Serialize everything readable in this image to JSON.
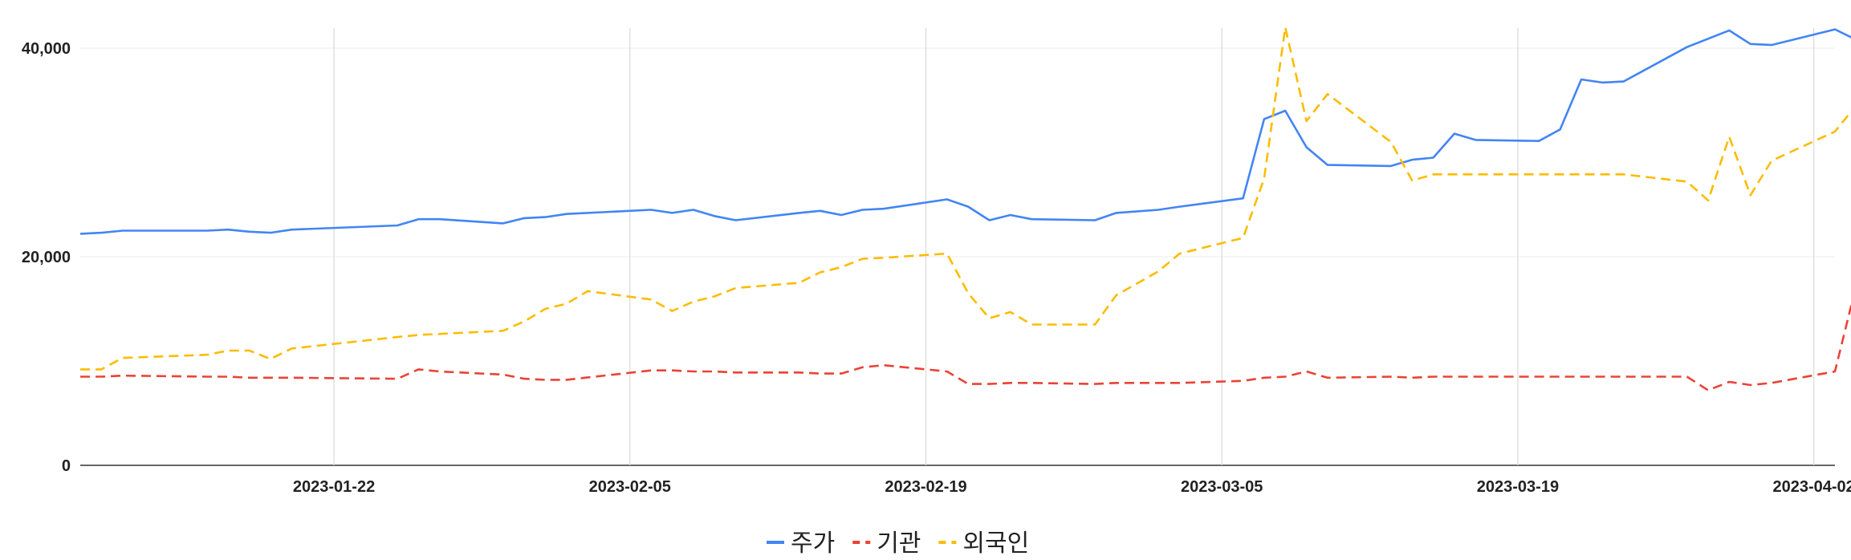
{
  "chart_data": {
    "type": "line",
    "title": "",
    "xlabel": "",
    "ylabel": "",
    "x_start": "2023-01-10",
    "x_end": "2023-04-03",
    "ylim": [
      0,
      40000
    ],
    "y_ticks": [
      0,
      20000,
      40000
    ],
    "y_tick_labels": [
      "0",
      "20,000",
      "40,000"
    ],
    "x_ticks": [
      "2023-01-22",
      "2023-02-05",
      "2023-02-19",
      "2023-03-05",
      "2023-03-19",
      "2023-04-02"
    ],
    "grid": true,
    "legend_position": "bottom",
    "series": [
      {
        "name": "주가",
        "color": "#4285f4",
        "style": "solid",
        "points": [
          [
            "2023-01-10",
            22200
          ],
          [
            "2023-01-11",
            22300
          ],
          [
            "2023-01-12",
            22500
          ],
          [
            "2023-01-16",
            22500
          ],
          [
            "2023-01-17",
            22600
          ],
          [
            "2023-01-18",
            22400
          ],
          [
            "2023-01-19",
            22300
          ],
          [
            "2023-01-20",
            22600
          ],
          [
            "2023-01-25",
            23000
          ],
          [
            "2023-01-26",
            23600
          ],
          [
            "2023-01-27",
            23600
          ],
          [
            "2023-01-30",
            23200
          ],
          [
            "2023-01-31",
            23700
          ],
          [
            "2023-02-01",
            23800
          ],
          [
            "2023-02-02",
            24100
          ],
          [
            "2023-02-06",
            24500
          ],
          [
            "2023-02-07",
            24200
          ],
          [
            "2023-02-08",
            24500
          ],
          [
            "2023-02-09",
            23900
          ],
          [
            "2023-02-10",
            23500
          ],
          [
            "2023-02-13",
            24200
          ],
          [
            "2023-02-14",
            24400
          ],
          [
            "2023-02-15",
            24000
          ],
          [
            "2023-02-16",
            24500
          ],
          [
            "2023-02-17",
            24600
          ],
          [
            "2023-02-20",
            25500
          ],
          [
            "2023-02-21",
            24800
          ],
          [
            "2023-02-22",
            23500
          ],
          [
            "2023-02-23",
            24000
          ],
          [
            "2023-02-24",
            23600
          ],
          [
            "2023-02-27",
            23500
          ],
          [
            "2023-02-28",
            24200
          ],
          [
            "2023-03-02",
            24500
          ],
          [
            "2023-03-03",
            24800
          ],
          [
            "2023-03-06",
            25600
          ],
          [
            "2023-03-07",
            33200
          ],
          [
            "2023-03-08",
            34000
          ],
          [
            "2023-03-09",
            30500
          ],
          [
            "2023-03-10",
            28800
          ],
          [
            "2023-03-13",
            28700
          ],
          [
            "2023-03-14",
            29300
          ],
          [
            "2023-03-15",
            29500
          ],
          [
            "2023-03-16",
            31800
          ],
          [
            "2023-03-17",
            31200
          ],
          [
            "2023-03-20",
            31100
          ],
          [
            "2023-03-21",
            32200
          ],
          [
            "2023-03-22",
            37000
          ],
          [
            "2023-03-23",
            36700
          ],
          [
            "2023-03-24",
            36800
          ],
          [
            "2023-03-27",
            40100
          ],
          [
            "2023-03-29",
            41700
          ],
          [
            "2023-03-30",
            40400
          ],
          [
            "2023-03-31",
            40300
          ],
          [
            "2023-04-03",
            41800
          ],
          [
            "2023-04-04",
            40800
          ]
        ]
      },
      {
        "name": "기관",
        "color": "#ea4335",
        "style": "dashed",
        "points": [
          [
            "2023-01-10",
            8500
          ],
          [
            "2023-01-11",
            8500
          ],
          [
            "2023-01-12",
            8600
          ],
          [
            "2023-01-16",
            8500
          ],
          [
            "2023-01-17",
            8500
          ],
          [
            "2023-01-18",
            8400
          ],
          [
            "2023-01-19",
            8400
          ],
          [
            "2023-01-20",
            8400
          ],
          [
            "2023-01-25",
            8300
          ],
          [
            "2023-01-26",
            9200
          ],
          [
            "2023-01-27",
            9000
          ],
          [
            "2023-01-30",
            8700
          ],
          [
            "2023-01-31",
            8300
          ],
          [
            "2023-02-01",
            8200
          ],
          [
            "2023-02-02",
            8200
          ],
          [
            "2023-02-06",
            9100
          ],
          [
            "2023-02-07",
            9100
          ],
          [
            "2023-02-08",
            9000
          ],
          [
            "2023-02-09",
            9000
          ],
          [
            "2023-02-10",
            8900
          ],
          [
            "2023-02-13",
            8900
          ],
          [
            "2023-02-14",
            8800
          ],
          [
            "2023-02-15",
            8800
          ],
          [
            "2023-02-16",
            9400
          ],
          [
            "2023-02-17",
            9600
          ],
          [
            "2023-02-20",
            9000
          ],
          [
            "2023-02-21",
            7800
          ],
          [
            "2023-02-22",
            7800
          ],
          [
            "2023-02-23",
            7900
          ],
          [
            "2023-02-24",
            7900
          ],
          [
            "2023-02-27",
            7800
          ],
          [
            "2023-02-28",
            7900
          ],
          [
            "2023-03-02",
            7900
          ],
          [
            "2023-03-03",
            7900
          ],
          [
            "2023-03-06",
            8100
          ],
          [
            "2023-03-07",
            8400
          ],
          [
            "2023-03-08",
            8500
          ],
          [
            "2023-03-09",
            9000
          ],
          [
            "2023-03-10",
            8400
          ],
          [
            "2023-03-13",
            8500
          ],
          [
            "2023-03-14",
            8400
          ],
          [
            "2023-03-15",
            8500
          ],
          [
            "2023-03-16",
            8500
          ],
          [
            "2023-03-17",
            8500
          ],
          [
            "2023-03-20",
            8500
          ],
          [
            "2023-03-21",
            8500
          ],
          [
            "2023-03-22",
            8500
          ],
          [
            "2023-03-23",
            8500
          ],
          [
            "2023-03-24",
            8500
          ],
          [
            "2023-03-27",
            8500
          ],
          [
            "2023-03-28",
            7200
          ],
          [
            "2023-03-29",
            8000
          ],
          [
            "2023-03-30",
            7700
          ],
          [
            "2023-03-31",
            7900
          ],
          [
            "2023-04-03",
            9000
          ],
          [
            "2023-04-04",
            17200
          ]
        ]
      },
      {
        "name": "외국인",
        "color": "#fbbc04",
        "style": "dashed",
        "points": [
          [
            "2023-01-10",
            9200
          ],
          [
            "2023-01-11",
            9200
          ],
          [
            "2023-01-12",
            10300
          ],
          [
            "2023-01-16",
            10600
          ],
          [
            "2023-01-17",
            11000
          ],
          [
            "2023-01-18",
            11000
          ],
          [
            "2023-01-19",
            10200
          ],
          [
            "2023-01-20",
            11200
          ],
          [
            "2023-01-25",
            12300
          ],
          [
            "2023-01-26",
            12500
          ],
          [
            "2023-01-27",
            12600
          ],
          [
            "2023-01-30",
            12900
          ],
          [
            "2023-01-31",
            13800
          ],
          [
            "2023-02-01",
            15000
          ],
          [
            "2023-02-02",
            15500
          ],
          [
            "2023-02-03",
            16700
          ],
          [
            "2023-02-06",
            15900
          ],
          [
            "2023-02-07",
            14800
          ],
          [
            "2023-02-08",
            15700
          ],
          [
            "2023-02-09",
            16200
          ],
          [
            "2023-02-10",
            17000
          ],
          [
            "2023-02-13",
            17500
          ],
          [
            "2023-02-14",
            18500
          ],
          [
            "2023-02-15",
            19000
          ],
          [
            "2023-02-16",
            19800
          ],
          [
            "2023-02-17",
            19900
          ],
          [
            "2023-02-20",
            20300
          ],
          [
            "2023-02-21",
            16500
          ],
          [
            "2023-02-22",
            14100
          ],
          [
            "2023-02-23",
            14700
          ],
          [
            "2023-02-24",
            13500
          ],
          [
            "2023-02-27",
            13500
          ],
          [
            "2023-02-28",
            16300
          ],
          [
            "2023-03-02",
            18600
          ],
          [
            "2023-03-03",
            20300
          ],
          [
            "2023-03-06",
            21800
          ],
          [
            "2023-03-07",
            27500
          ],
          [
            "2023-03-08",
            42000
          ],
          [
            "2023-03-09",
            33000
          ],
          [
            "2023-03-10",
            35600
          ],
          [
            "2023-03-13",
            31000
          ],
          [
            "2023-03-14",
            27300
          ],
          [
            "2023-03-15",
            27900
          ],
          [
            "2023-03-20",
            27900
          ],
          [
            "2023-03-24",
            27900
          ],
          [
            "2023-03-27",
            27200
          ],
          [
            "2023-03-28",
            25400
          ],
          [
            "2023-03-29",
            31500
          ],
          [
            "2023-03-30",
            25900
          ],
          [
            "2023-03-31",
            29200
          ],
          [
            "2023-04-03",
            32000
          ],
          [
            "2023-04-04",
            34500
          ]
        ]
      }
    ]
  }
}
